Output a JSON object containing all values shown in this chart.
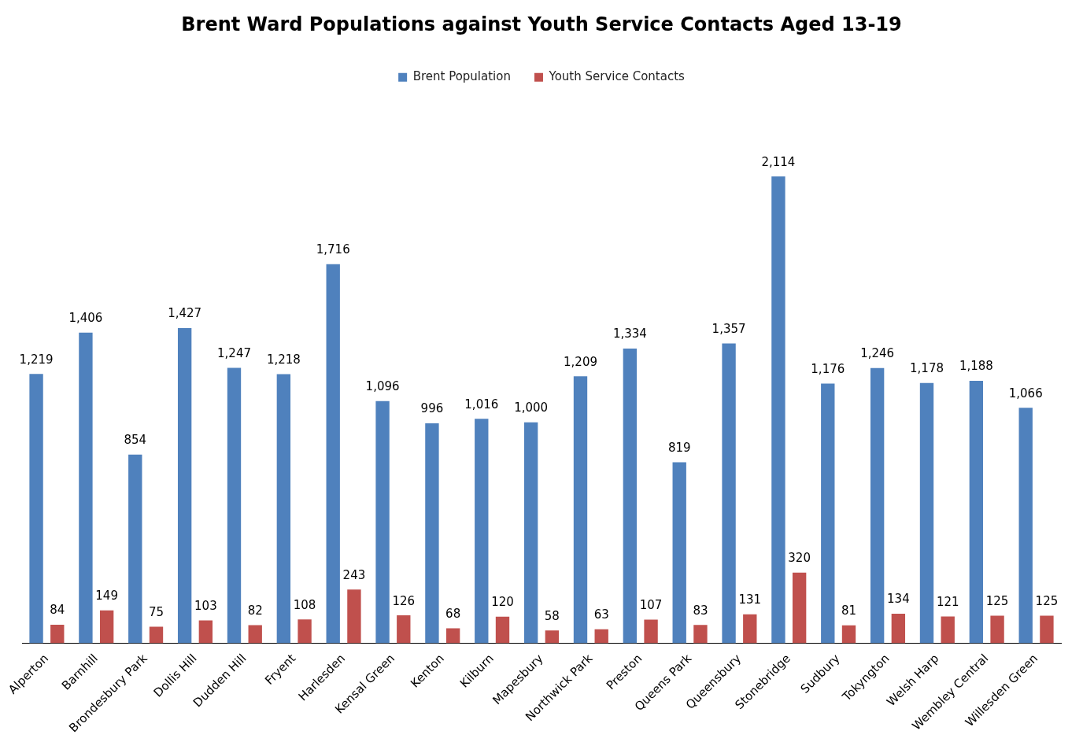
{
  "chart_data": {
    "type": "bar",
    "title": "Brent Ward Populations against Youth Service Contacts Aged 13-19",
    "categories": [
      "Alperton",
      "Barnhill",
      "Brondesbury Park",
      "Dollis Hill",
      "Dudden Hill",
      "Fryent",
      "Harlesden",
      "Kensal Green",
      "Kenton",
      "Kilburn",
      "Mapesbury",
      "Northwick Park",
      "Preston",
      "Queens Park",
      "Queensbury",
      "Stonebridge",
      "Sudbury",
      "Tokyngton",
      "Welsh Harp",
      "Wembley Central",
      "Willesden Green"
    ],
    "series": [
      {
        "name": "Brent Population",
        "color": "#4f81bd",
        "values": [
          1219,
          1406,
          854,
          1427,
          1247,
          1218,
          1716,
          1096,
          996,
          1016,
          1000,
          1209,
          1334,
          819,
          1357,
          2114,
          1176,
          1246,
          1178,
          1188,
          1066
        ],
        "value_labels": [
          "1,219",
          "1,406",
          "854",
          "1,427",
          "1,247",
          "1,218",
          "1,716",
          "1,096",
          "996",
          "1,016",
          "1,000",
          "1,209",
          "1,334",
          "819",
          "1,357",
          "2,114",
          "1,176",
          "1,246",
          "1,178",
          "1,188",
          "1,066"
        ]
      },
      {
        "name": "Youth Service Contacts",
        "color": "#c0504d",
        "values": [
          84,
          149,
          75,
          103,
          82,
          108,
          243,
          126,
          68,
          120,
          58,
          63,
          107,
          83,
          131,
          320,
          81,
          134,
          121,
          125,
          125
        ],
        "value_labels": [
          "84",
          "149",
          "75",
          "103",
          "82",
          "108",
          "243",
          "126",
          "68",
          "120",
          "58",
          "63",
          "107",
          "83",
          "131",
          "320",
          "81",
          "134",
          "121",
          "125",
          "125"
        ]
      }
    ],
    "legend": "top",
    "grid": false
  }
}
